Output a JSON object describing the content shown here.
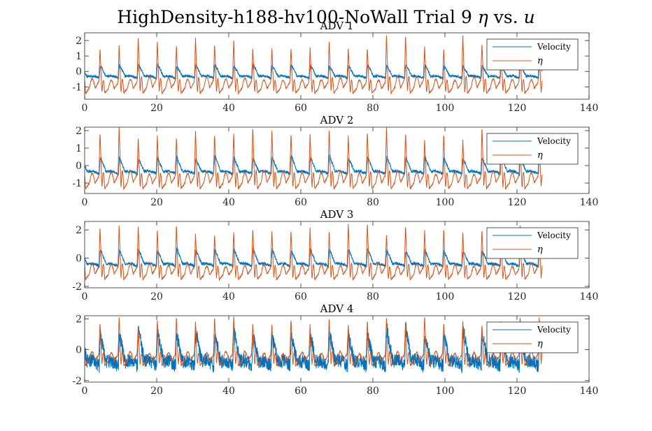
{
  "figure": {
    "title_prefix": "HighDensity-h188-hv100-NoWall Trial 9 ",
    "title_eta": "η",
    "title_vs": " vs. ",
    "title_u": "u"
  },
  "colors": {
    "velocity": "#0072BD",
    "eta": "#D95319",
    "axes": "#262626"
  },
  "chart_data": [
    {
      "type": "line",
      "title": "ADV 1",
      "xlim": [
        0,
        140
      ],
      "ylim": [
        -1.8,
        2.5
      ],
      "xticks": [
        "0",
        "20",
        "40",
        "60",
        "80",
        "100",
        "120",
        "140"
      ],
      "yticks": [
        {
          "value": 2,
          "label": "2"
        },
        {
          "value": 1,
          "label": "1"
        },
        {
          "value": 0,
          "label": "0"
        },
        {
          "value": -1,
          "label": "-1"
        }
      ],
      "legend_placement": "top-right",
      "wave_period_s": 5.3,
      "x_end_s": 127,
      "series": [
        {
          "name": "Velocity",
          "color": "#0072BD",
          "trough": -0.45,
          "crest": 0.45,
          "noise": 0.08
        },
        {
          "name": "η",
          "color": "#D95319",
          "trough": -1.5,
          "crest": 2.2,
          "noise": 0.04
        }
      ]
    },
    {
      "type": "line",
      "title": "ADV 2",
      "xlim": [
        0,
        140
      ],
      "ylim": [
        -1.6,
        2.2
      ],
      "xticks": [
        "0",
        "20",
        "40",
        "60",
        "80",
        "100",
        "120",
        "140"
      ],
      "yticks": [
        {
          "value": 2,
          "label": "2"
        },
        {
          "value": 1,
          "label": "1"
        },
        {
          "value": 0,
          "label": "0"
        },
        {
          "value": -1,
          "label": "-1"
        }
      ],
      "legend_placement": "top-right",
      "wave_period_s": 5.3,
      "x_end_s": 127,
      "series": [
        {
          "name": "Velocity",
          "color": "#0072BD",
          "trough": -0.5,
          "crest": 0.55,
          "noise": 0.08
        },
        {
          "name": "η",
          "color": "#D95319",
          "trough": -1.4,
          "crest": 2.1,
          "noise": 0.04
        }
      ]
    },
    {
      "type": "line",
      "title": "ADV 3",
      "xlim": [
        0,
        140
      ],
      "ylim": [
        -2.1,
        2.6
      ],
      "xticks": [
        "0",
        "20",
        "40",
        "60",
        "80",
        "100",
        "120",
        "140"
      ],
      "yticks": [
        {
          "value": 2,
          "label": "2"
        },
        {
          "value": 0,
          "label": "0"
        },
        {
          "value": -2,
          "label": "-2"
        }
      ],
      "legend_placement": "top-right",
      "wave_period_s": 5.3,
      "x_end_s": 127,
      "series": [
        {
          "name": "Velocity",
          "color": "#0072BD",
          "trough": -0.6,
          "crest": 0.7,
          "noise": 0.1
        },
        {
          "name": "η",
          "color": "#D95319",
          "trough": -1.6,
          "crest": 2.4,
          "noise": 0.05
        }
      ]
    },
    {
      "type": "line",
      "title": "ADV 4",
      "xlim": [
        0,
        140
      ],
      "ylim": [
        -2.1,
        2.2
      ],
      "xticks": [
        "0",
        "20",
        "40",
        "60",
        "80",
        "100",
        "120",
        "140"
      ],
      "yticks": [
        {
          "value": 2,
          "label": "2"
        },
        {
          "value": 0,
          "label": "0"
        },
        {
          "value": -2,
          "label": "-2"
        }
      ],
      "legend_placement": "top-right",
      "wave_period_s": 5.3,
      "x_end_s": 127,
      "series": [
        {
          "name": "Velocity",
          "color": "#0072BD",
          "trough": -1.1,
          "crest": 1.3,
          "noise": 0.45
        },
        {
          "name": "η",
          "color": "#D95319",
          "trough": -1.1,
          "crest": 2.1,
          "noise": 0.05
        }
      ]
    }
  ]
}
